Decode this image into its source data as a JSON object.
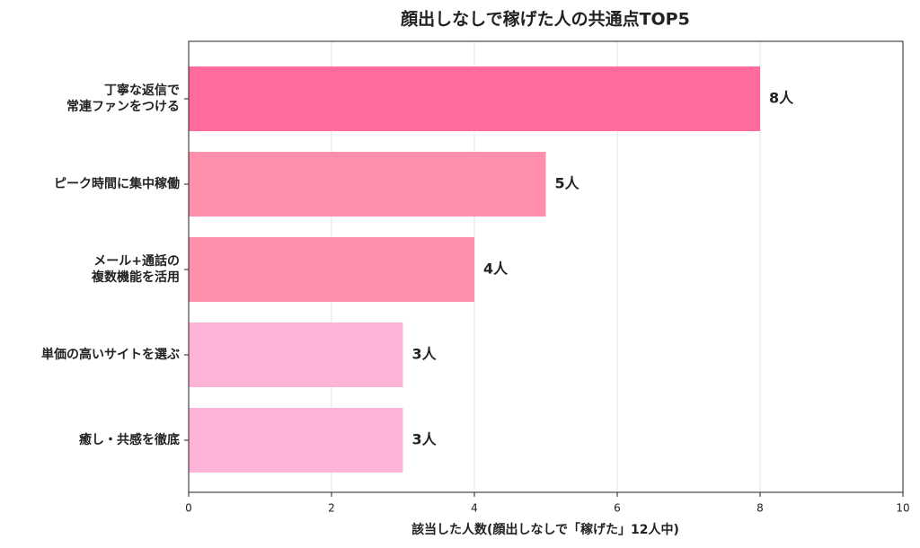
{
  "chart_data": {
    "type": "bar",
    "orientation": "horizontal",
    "title": "顔出しなしで稼げた人の共通点TOP5",
    "xlabel": "該当した人数(顔出しなしで「稼げた」12人中)",
    "categories": [
      "丁寧な返信で\n常連ファンをつける",
      "ピーク時間に集中稼働",
      "メール+通話の\n複数機能を活用",
      "単価の高いサイトを選ぶ",
      "癒し・共感を徹底"
    ],
    "values": [
      8,
      5,
      4,
      3,
      3
    ],
    "value_labels": [
      "8人",
      "5人",
      "4人",
      "3人",
      "3人"
    ],
    "colors": [
      "#ff6b9d",
      "#ff8fab",
      "#ff8fab",
      "#ffb3d9",
      "#ffb3d9"
    ],
    "xlim": [
      0,
      10
    ],
    "xticks": [
      0,
      2,
      4,
      6,
      8,
      10
    ],
    "grid": true
  }
}
